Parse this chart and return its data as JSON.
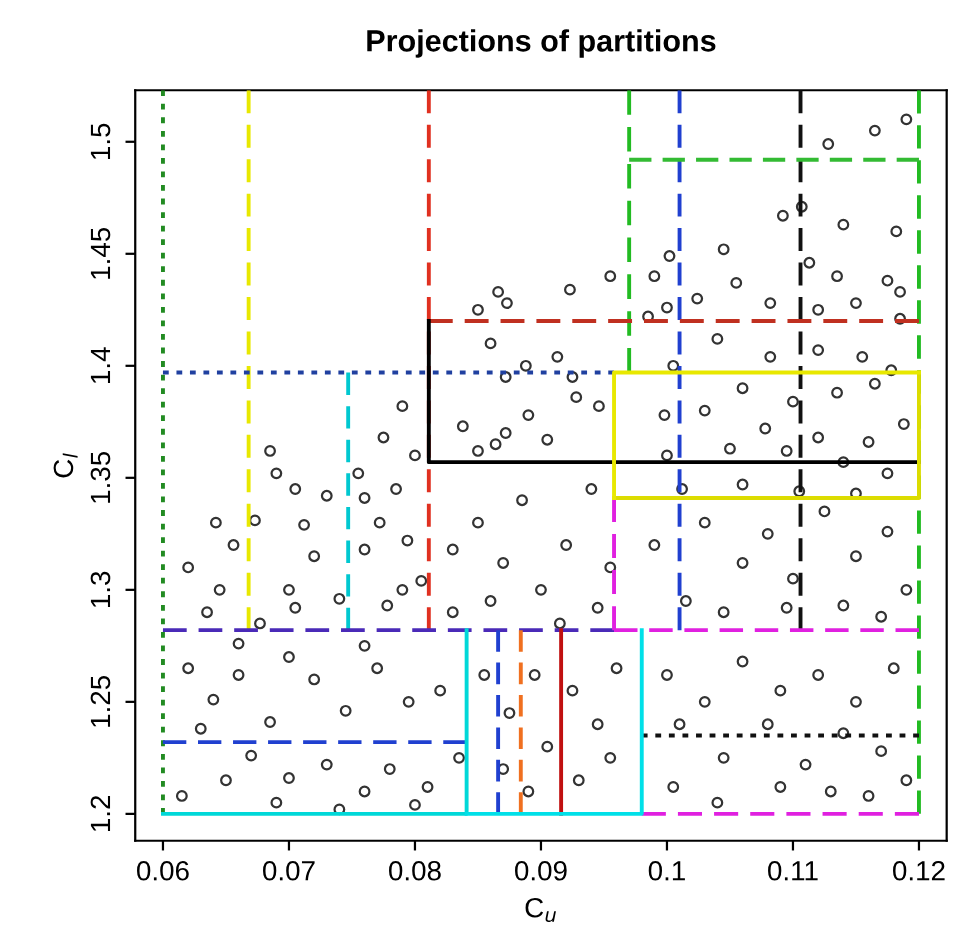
{
  "chart_data": {
    "type": "scatter",
    "title": "Projections of partitions",
    "xlabel": "C$_{u}$",
    "ylabel": "C$_{l}$",
    "xlim": [
      0.0578,
      0.1222
    ],
    "ylim": [
      1.188,
      1.523
    ],
    "xticks": [
      0.06,
      0.07,
      0.08,
      0.09,
      0.1,
      0.11,
      0.12
    ],
    "yticks": [
      1.2,
      1.25,
      1.3,
      1.35,
      1.4,
      1.45,
      1.5
    ],
    "grid": false,
    "legend": false,
    "series": [
      {
        "marker": "circle",
        "color": "#333333",
        "x": [
          0.1165,
          0.119,
          0.1128,
          0.1092,
          0.1107,
          0.114,
          0.1182,
          0.1045,
          0.1002,
          0.1113,
          0.1135,
          0.1055,
          0.1175,
          0.115,
          0.1185,
          0.112,
          0.1024,
          0.1082,
          0.1,
          0.099,
          0.0955,
          0.0923,
          0.0985,
          0.1185,
          0.0866,
          0.0873,
          0.085,
          0.086,
          0.0888,
          0.0913,
          0.0925,
          0.0872,
          0.0838,
          0.0864,
          0.089,
          0.0928,
          0.0946,
          0.085,
          0.0905,
          0.0872,
          0.1005,
          0.104,
          0.1082,
          0.112,
          0.1155,
          0.1178,
          0.106,
          0.11,
          0.1135,
          0.1165,
          0.0998,
          0.103,
          0.1078,
          0.112,
          0.116,
          0.1188,
          0.1,
          0.105,
          0.1095,
          0.114,
          0.1175,
          0.1012,
          0.106,
          0.1105,
          0.115,
          0.0685,
          0.069,
          0.0705,
          0.0642,
          0.0656,
          0.0673,
          0.0712,
          0.076,
          0.0775,
          0.079,
          0.08,
          0.0785,
          0.0772,
          0.076,
          0.0794,
          0.0805,
          0.073,
          0.0755,
          0.0645,
          0.062,
          0.0635,
          0.07,
          0.072,
          0.074,
          0.0778,
          0.079,
          0.083,
          0.085,
          0.087,
          0.0885,
          0.09,
          0.092,
          0.094,
          0.0955,
          0.083,
          0.086,
          0.0915,
          0.0945,
          0.0677,
          0.0705,
          0.099,
          0.103,
          0.106,
          0.108,
          0.11,
          0.1125,
          0.115,
          0.1175,
          0.119,
          0.1015,
          0.1045,
          0.1095,
          0.114,
          0.117,
          0.062,
          0.064,
          0.066,
          0.0685,
          0.07,
          0.072,
          0.0745,
          0.077,
          0.0795,
          0.082,
          0.063,
          0.067,
          0.07,
          0.073,
          0.076,
          0.078,
          0.081,
          0.0835,
          0.0615,
          0.065,
          0.069,
          0.074,
          0.08,
          0.066,
          0.076,
          0.0855,
          0.0875,
          0.0895,
          0.0905,
          0.0925,
          0.0945,
          0.096,
          0.093,
          0.0955,
          0.089,
          0.087,
          0.1,
          0.103,
          0.106,
          0.109,
          0.112,
          0.115,
          0.118,
          0.101,
          0.1045,
          0.108,
          0.111,
          0.114,
          0.117,
          0.1005,
          0.104,
          0.109,
          0.113,
          0.116,
          0.119
        ],
        "values": [
          1.505,
          1.51,
          1.499,
          1.467,
          1.471,
          1.463,
          1.46,
          1.452,
          1.449,
          1.446,
          1.44,
          1.437,
          1.438,
          1.428,
          1.433,
          1.425,
          1.43,
          1.428,
          1.426,
          1.44,
          1.44,
          1.434,
          1.422,
          1.421,
          1.433,
          1.428,
          1.425,
          1.41,
          1.4,
          1.404,
          1.395,
          1.395,
          1.373,
          1.365,
          1.378,
          1.386,
          1.382,
          1.362,
          1.367,
          1.37,
          1.4,
          1.412,
          1.404,
          1.407,
          1.404,
          1.398,
          1.39,
          1.384,
          1.388,
          1.392,
          1.378,
          1.38,
          1.372,
          1.368,
          1.366,
          1.374,
          1.36,
          1.363,
          1.362,
          1.357,
          1.352,
          1.345,
          1.347,
          1.344,
          1.343,
          1.362,
          1.352,
          1.345,
          1.33,
          1.32,
          1.331,
          1.329,
          1.341,
          1.368,
          1.382,
          1.36,
          1.345,
          1.33,
          1.318,
          1.322,
          1.304,
          1.342,
          1.352,
          1.3,
          1.31,
          1.29,
          1.3,
          1.315,
          1.296,
          1.293,
          1.3,
          1.318,
          1.33,
          1.312,
          1.34,
          1.3,
          1.32,
          1.345,
          1.31,
          1.29,
          1.295,
          1.285,
          1.292,
          1.285,
          1.292,
          1.32,
          1.33,
          1.312,
          1.325,
          1.305,
          1.335,
          1.315,
          1.326,
          1.3,
          1.295,
          1.29,
          1.292,
          1.293,
          1.288,
          1.265,
          1.251,
          1.262,
          1.241,
          1.27,
          1.26,
          1.246,
          1.265,
          1.25,
          1.255,
          1.238,
          1.226,
          1.216,
          1.222,
          1.21,
          1.22,
          1.212,
          1.225,
          1.208,
          1.215,
          1.205,
          1.202,
          1.204,
          1.276,
          1.275,
          1.262,
          1.245,
          1.262,
          1.23,
          1.255,
          1.24,
          1.265,
          1.215,
          1.225,
          1.21,
          1.22,
          1.262,
          1.25,
          1.268,
          1.255,
          1.262,
          1.25,
          1.265,
          1.24,
          1.225,
          1.24,
          1.222,
          1.236,
          1.228,
          1.212,
          1.205,
          1.212,
          1.21,
          1.208,
          1.215
        ]
      },
      {
        "type": "line",
        "color": "#228b22",
        "line_style": "dotted",
        "x": [
          0.06,
          0.06
        ],
        "values": [
          1.2,
          1.523
        ]
      },
      {
        "type": "line",
        "color": "#e8e800",
        "line_style": "dashed",
        "x": [
          0.0668,
          0.0668
        ],
        "values": [
          1.282,
          1.523
        ]
      },
      {
        "type": "line",
        "color": "#e03020",
        "line_style": "dashed",
        "x": [
          0.0811,
          0.0811
        ],
        "values": [
          1.282,
          1.523
        ]
      },
      {
        "type": "line",
        "color": "#00c8d0",
        "line_style": "dashed",
        "x": [
          0.0747,
          0.0747
        ],
        "values": [
          1.282,
          1.397
        ]
      },
      {
        "type": "line",
        "color": "#22bb22",
        "line_style": "dashed",
        "x": [
          0.097,
          0.097
        ],
        "values": [
          1.397,
          1.523
        ]
      },
      {
        "type": "line",
        "color": "#2040d0",
        "line_style": "dashed",
        "x": [
          0.101,
          0.101
        ],
        "values": [
          1.282,
          1.523
        ]
      },
      {
        "type": "line",
        "color": "#111111",
        "line_style": "dashed",
        "x": [
          0.1106,
          0.1106
        ],
        "values": [
          1.282,
          1.523
        ]
      },
      {
        "type": "line",
        "color": "#22bb22",
        "line_style": "dashed",
        "x": [
          0.12,
          0.12
        ],
        "values": [
          1.2,
          1.523
        ]
      },
      {
        "type": "line",
        "color": "#2040a0",
        "line_style": "dotted",
        "x": [
          0.06,
          0.0958
        ],
        "values": [
          1.397,
          1.397
        ]
      },
      {
        "type": "line",
        "color": "#c03020",
        "line_style": "dashed",
        "x": [
          0.0811,
          0.12
        ],
        "values": [
          1.42,
          1.42
        ]
      },
      {
        "type": "line",
        "color": "#33bb33",
        "line_style": "dashed",
        "x": [
          0.097,
          0.12
        ],
        "values": [
          1.492,
          1.492
        ]
      },
      {
        "type": "line",
        "color": "#000000",
        "line_style": "solid",
        "x": [
          0.12,
          0.0811,
          0.0811
        ],
        "values": [
          1.357,
          1.357,
          1.42
        ]
      },
      {
        "type": "line",
        "color": "#4a2ab8",
        "line_style": "dashed",
        "x": [
          0.06,
          0.0958
        ],
        "values": [
          1.282,
          1.282
        ]
      },
      {
        "type": "line",
        "color": "#e020e0",
        "line_style": "dashed",
        "x": [
          0.0958,
          0.12
        ],
        "values": [
          1.282,
          1.282
        ]
      },
      {
        "type": "line",
        "color": "#e020e0",
        "line_style": "dashed",
        "x": [
          0.0958,
          0.0958
        ],
        "values": [
          1.282,
          1.341
        ]
      },
      {
        "type": "line",
        "color": "#e020e0",
        "line_style": "dashed",
        "x": [
          0.098,
          0.12
        ],
        "values": [
          1.2,
          1.2
        ]
      },
      {
        "type": "line",
        "color": "#2040d0",
        "line_style": "dashed",
        "x": [
          0.06,
          0.0841
        ],
        "values": [
          1.232,
          1.232
        ]
      },
      {
        "type": "line",
        "color": "#111111",
        "line_style": "dotted",
        "x": [
          0.098,
          0.12
        ],
        "values": [
          1.235,
          1.235
        ]
      },
      {
        "type": "line",
        "color": "#2040d0",
        "line_style": "dashed",
        "x": [
          0.0866,
          0.0866
        ],
        "values": [
          1.2,
          1.282
        ]
      },
      {
        "type": "line",
        "color": "#f07020",
        "line_style": "dashed",
        "x": [
          0.0884,
          0.0884
        ],
        "values": [
          1.2,
          1.282
        ]
      },
      {
        "type": "line",
        "color": "#c01010",
        "line_style": "solid",
        "x": [
          0.0916,
          0.0916
        ],
        "values": [
          1.2,
          1.282
        ]
      },
      {
        "type": "line",
        "color": "#00d8d8",
        "line_style": "solid",
        "x": [
          0.06,
          0.0841,
          0.0841
        ],
        "values": [
          1.2,
          1.2,
          1.282
        ]
      },
      {
        "type": "line",
        "color": "#00e0e8",
        "line_style": "solid",
        "x": [
          0.0841,
          0.098,
          0.098
        ],
        "values": [
          1.2,
          1.2,
          1.282
        ]
      },
      {
        "type": "line",
        "color": "#dcdc00",
        "line_style": "solid",
        "x": [
          0.0958,
          0.12,
          0.12
        ],
        "values": [
          1.341,
          1.341,
          1.397
        ]
      },
      {
        "type": "line",
        "color": "#e8e800",
        "line_style": "solid",
        "x": [
          0.0958,
          0.0958,
          0.12
        ],
        "values": [
          1.341,
          1.397,
          1.397
        ]
      }
    ]
  }
}
